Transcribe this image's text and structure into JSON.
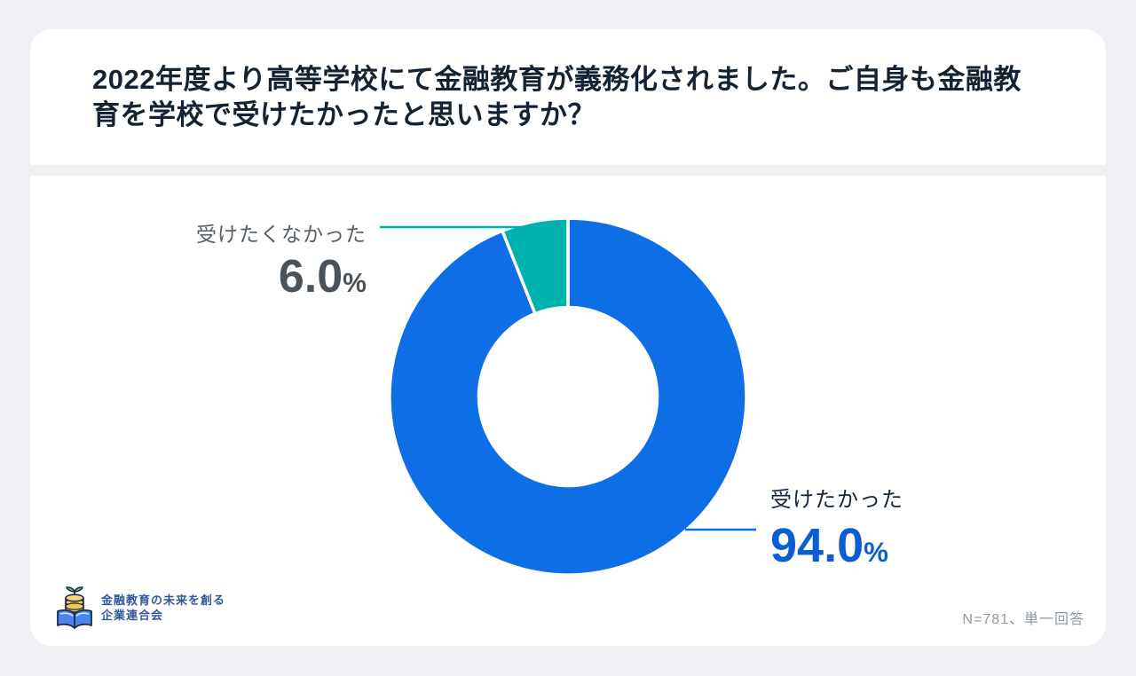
{
  "header": {
    "title": "2022年度より高等学校にて金融教育が義務化されました。ご自身も金融教育を学校で受けたかったと思いますか？"
  },
  "chart_data": {
    "type": "pie",
    "subtype": "donut",
    "title": "2022年度より高等学校にて金融教育が義務化されました。ご自身も金融教育を学校で受けたかったと思いますか？",
    "categories": [
      "受けたかった",
      "受けたくなかった"
    ],
    "values": [
      94.0,
      6.0
    ],
    "unit": "%",
    "colors": [
      "#0d6ee6",
      "#00b2ad"
    ],
    "start_angle_deg": 0,
    "direction": "clockwise",
    "inner_radius_ratio": 0.5,
    "note": "N=781、単一回答"
  },
  "labels": {
    "no": {
      "name": "受けたくなかった",
      "value": "6.0",
      "unit": "%"
    },
    "yes": {
      "name": "受けたかった",
      "value": "94.0",
      "unit": "%"
    }
  },
  "footer": {
    "logo_icon": "book-with-coins-icon",
    "logo_line1": "金融教育の未来を創る",
    "logo_line2": "企業連合会",
    "note": "N=781、単一回答"
  },
  "colors": {
    "page_background": "#f0f1f4",
    "card_background": "#ffffff",
    "title_text": "#142233",
    "slice_yes": "#0d6ee6",
    "slice_no": "#00b2ad",
    "label_gray": "#57606a",
    "percent_gray": "#4a525a",
    "label_dark": "#16243a",
    "percent_blue": "#0a5ecf",
    "note_gray": "#9098a1",
    "logo_blue": "#30599c"
  }
}
